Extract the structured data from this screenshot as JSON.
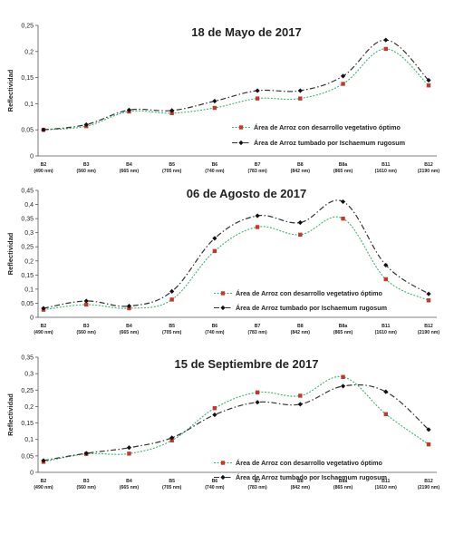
{
  "chart_data": [
    {
      "type": "line",
      "title": "18 de Mayo de 2017",
      "ylabel": "Reflectividad",
      "ylim": [
        0,
        0.25
      ],
      "yticks": [
        "0",
        "0,05",
        "0,1",
        "0,15",
        "0,2",
        "0,25"
      ],
      "categories": [
        "B2",
        "B3",
        "B4",
        "B5",
        "B6",
        "B7",
        "B8",
        "B8a",
        "B11",
        "B12"
      ],
      "category_sublabels": [
        "(490 nm)",
        "(560 nm)",
        "(665 nm)",
        "(705 nm)",
        "(740 nm)",
        "(783 nm)",
        "(842 nm)",
        "(865 nm)",
        "(1610 nm)",
        "(2190 nm)"
      ],
      "legend_position": "right",
      "series": [
        {
          "name": "Área de Arroz con desarrollo vegetativo óptimo",
          "color": "#c0392b",
          "line_color": "#3cb371",
          "values": [
            0.05,
            0.057,
            0.085,
            0.082,
            0.092,
            0.11,
            0.11,
            0.138,
            0.205,
            0.135
          ]
        },
        {
          "name": "Área de Arroz tumbado por Ischaemum rugosum",
          "color": "#111111",
          "line_color": "#333333",
          "values": [
            0.05,
            0.06,
            0.088,
            0.087,
            0.105,
            0.125,
            0.125,
            0.153,
            0.222,
            0.145
          ]
        }
      ]
    },
    {
      "type": "line",
      "title": "06 de Agosto de 2017",
      "ylabel": "Reflectividad",
      "ylim": [
        0,
        0.45
      ],
      "yticks": [
        "0",
        "0,05",
        "0,1",
        "0,15",
        "0,2",
        "0,25",
        "0,3",
        "0,35",
        "0,4",
        "0,45"
      ],
      "categories": [
        "B2",
        "B3",
        "B4",
        "B5",
        "B6",
        "B7",
        "B8",
        "B8a",
        "B11",
        "B12"
      ],
      "category_sublabels": [
        "(490 nm)",
        "(560 nm)",
        "(665 nm)",
        "(705 nm)",
        "(740 nm)",
        "(783 nm)",
        "(842 nm)",
        "(865 nm)",
        "(1610 nm)",
        "(2190 nm)"
      ],
      "legend_position": "bottom-right",
      "series": [
        {
          "name": "Área de Arroz con desarrollo vegetativo óptimo",
          "color": "#c0392b",
          "line_color": "#3cb371",
          "values": [
            0.027,
            0.045,
            0.032,
            0.063,
            0.235,
            0.32,
            0.293,
            0.35,
            0.135,
            0.06
          ]
        },
        {
          "name": "Área de Arroz tumbado por Ischaemum rugosum",
          "color": "#111111",
          "line_color": "#333333",
          "values": [
            0.032,
            0.058,
            0.04,
            0.092,
            0.28,
            0.36,
            0.336,
            0.41,
            0.185,
            0.083
          ]
        }
      ]
    },
    {
      "type": "line",
      "title": "15 de Septiembre de 2017",
      "ylabel": "Reflectividad",
      "ylim": [
        0,
        0.35
      ],
      "yticks": [
        "0",
        "0,05",
        "0,1",
        "0,15",
        "0,2",
        "0,25",
        "0,3",
        "0,35"
      ],
      "categories": [
        "B2",
        "B3",
        "B4",
        "B5",
        "B6",
        "B7",
        "B8",
        "B8a",
        "B11",
        "B12"
      ],
      "category_sublabels": [
        "(490 nm)",
        "(560 nm)",
        "(665 nm)",
        "(705 nm)",
        "(740 nm)",
        "(783 nm)",
        "(842 nm)",
        "(865 nm)",
        "(1610 nm)",
        "(2190 nm)"
      ],
      "legend_position": "bottom-right",
      "series": [
        {
          "name": "Área de Arroz con desarrollo vegetativo óptimo",
          "color": "#c0392b",
          "line_color": "#3cb371",
          "values": [
            0.032,
            0.056,
            0.057,
            0.097,
            0.195,
            0.243,
            0.233,
            0.29,
            0.177,
            0.085
          ]
        },
        {
          "name": "Área de Arroz tumbado por Ischaemum rugosum",
          "color": "#111111",
          "line_color": "#333333",
          "values": [
            0.036,
            0.058,
            0.075,
            0.105,
            0.175,
            0.213,
            0.207,
            0.262,
            0.245,
            0.13
          ]
        }
      ]
    }
  ]
}
